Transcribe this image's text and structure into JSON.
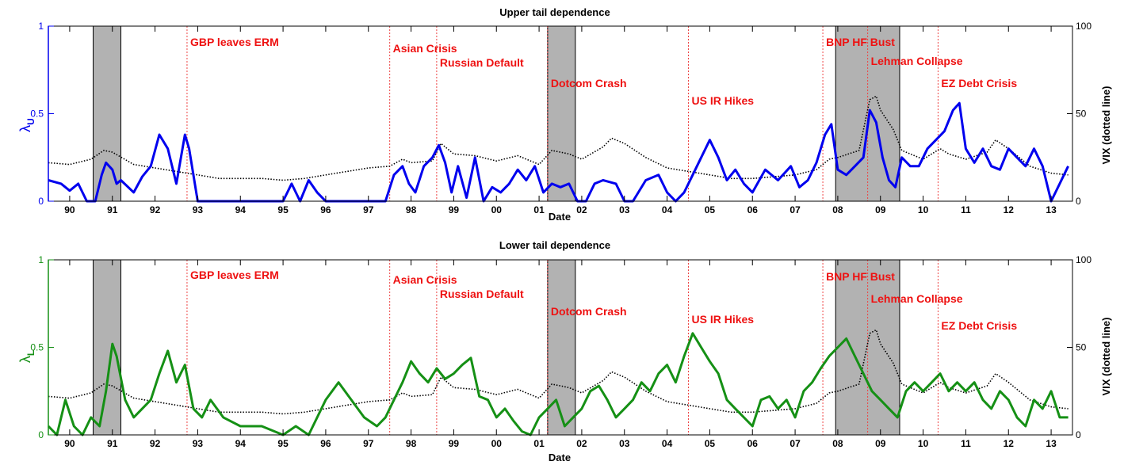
{
  "colors": {
    "upper_series": "#0000ee",
    "lower_series": "#159015",
    "vix_series": "#000000",
    "event_line": "#ee4444",
    "event_text": "#ee1111",
    "recession_fill": "#b2b2b2"
  },
  "x_ticks": [
    "90",
    "91",
    "92",
    "93",
    "94",
    "95",
    "96",
    "97",
    "98",
    "99",
    "00",
    "01",
    "02",
    "03",
    "04",
    "05",
    "06",
    "07",
    "08",
    "09",
    "10",
    "11",
    "12",
    "13"
  ],
  "xlabel": "Date",
  "recessions": [
    [
      1990.55,
      1991.2
    ],
    [
      2001.2,
      2001.85
    ],
    [
      2007.95,
      2009.45
    ]
  ],
  "events": [
    {
      "label": "GBP leaves ERM",
      "year": 1992.75
    },
    {
      "label": "Asian Crisis",
      "year": 1997.5
    },
    {
      "label": "Russian Default",
      "year": 1998.6
    },
    {
      "label": "Dotcom Crash",
      "year": 2001.2
    },
    {
      "label": "US IR Hikes",
      "year": 2004.5
    },
    {
      "label": "BNP HF Bust",
      "year": 2007.65
    },
    {
      "label": "Lehman Collapse",
      "year": 2008.7
    },
    {
      "label": "EZ Debt Crisis",
      "year": 2010.35
    }
  ],
  "vix_series": {
    "x": [
      1989.5,
      1990.0,
      1990.5,
      1990.8,
      1991.0,
      1991.5,
      1992.0,
      1992.5,
      1993.0,
      1993.5,
      1994.0,
      1994.5,
      1995.0,
      1995.5,
      1996.0,
      1996.5,
      1997.0,
      1997.5,
      1997.8,
      1998.0,
      1998.5,
      1998.7,
      1999.0,
      1999.5,
      2000.0,
      2000.5,
      2001.0,
      2001.3,
      2001.7,
      2002.0,
      2002.5,
      2002.7,
      2003.0,
      2003.5,
      2004.0,
      2004.5,
      2005.0,
      2005.5,
      2006.0,
      2006.5,
      2007.0,
      2007.5,
      2007.8,
      2008.0,
      2008.5,
      2008.75,
      2008.9,
      2009.0,
      2009.3,
      2009.5,
      2010.0,
      2010.4,
      2010.6,
      2011.0,
      2011.5,
      2011.7,
      2012.0,
      2012.5,
      2013.0,
      2013.4
    ],
    "y": [
      22,
      21,
      24,
      29,
      28,
      21,
      19,
      17,
      15,
      13,
      13,
      13,
      12,
      13,
      15,
      17,
      19,
      20,
      24,
      22,
      23,
      33,
      27,
      26,
      23,
      26,
      21,
      29,
      27,
      24,
      31,
      36,
      33,
      25,
      19,
      17,
      15,
      13,
      13,
      14,
      15,
      18,
      24,
      25,
      29,
      58,
      60,
      52,
      41,
      29,
      24,
      30,
      27,
      24,
      28,
      35,
      30,
      20,
      16,
      15
    ]
  },
  "chart_data": [
    {
      "type": "line",
      "title": "Upper tail dependence",
      "xlabel": "Date",
      "ylabel": "λ_U",
      "ylabel_main": "λ",
      "ylabel_sub": "U",
      "y2label": "VIX (dotted line)",
      "xlim": [
        1989.5,
        2013.5
      ],
      "ylim": [
        0,
        1
      ],
      "y2lim": [
        0,
        100
      ],
      "yticks": [
        0,
        0.5,
        1
      ],
      "y2ticks": [
        0,
        50,
        100
      ],
      "categories": [
        "90",
        "91",
        "92",
        "93",
        "94",
        "95",
        "96",
        "97",
        "98",
        "99",
        "00",
        "01",
        "02",
        "03",
        "04",
        "05",
        "06",
        "07",
        "08",
        "09",
        "10",
        "11",
        "12",
        "13"
      ],
      "series": [
        {
          "axis": "left",
          "x": [
            1989.5,
            1989.8,
            1990.0,
            1990.2,
            1990.4,
            1990.6,
            1990.75,
            1990.85,
            1991.0,
            1991.1,
            1991.2,
            1991.5,
            1991.7,
            1991.9,
            1992.1,
            1992.3,
            1992.5,
            1992.7,
            1992.8,
            1993.0,
            1993.2,
            1993.5,
            1994.0,
            1994.5,
            1995.0,
            1995.2,
            1995.4,
            1995.6,
            1995.8,
            1996.0,
            1996.3,
            1996.6,
            1996.9,
            1997.2,
            1997.4,
            1997.6,
            1997.8,
            1997.95,
            1998.1,
            1998.3,
            1998.5,
            1998.65,
            1998.8,
            1998.95,
            1999.1,
            1999.3,
            1999.5,
            1999.7,
            1999.9,
            2000.1,
            2000.3,
            2000.5,
            2000.7,
            2000.9,
            2001.1,
            2001.3,
            2001.5,
            2001.7,
            2001.9,
            2002.1,
            2002.3,
            2002.5,
            2002.8,
            2003.0,
            2003.2,
            2003.5,
            2003.8,
            2004.0,
            2004.2,
            2004.4,
            2004.6,
            2004.8,
            2005.0,
            2005.2,
            2005.4,
            2005.6,
            2005.8,
            2006.0,
            2006.3,
            2006.6,
            2006.9,
            2007.1,
            2007.3,
            2007.5,
            2007.7,
            2007.85,
            2008.0,
            2008.2,
            2008.4,
            2008.6,
            2008.75,
            2008.9,
            2009.05,
            2009.2,
            2009.35,
            2009.5,
            2009.7,
            2009.9,
            2010.1,
            2010.3,
            2010.5,
            2010.7,
            2010.85,
            2011.0,
            2011.2,
            2011.4,
            2011.6,
            2011.8,
            2012.0,
            2012.2,
            2012.4,
            2012.6,
            2012.8,
            2013.0,
            2013.2,
            2013.4
          ],
          "y": [
            0.12,
            0.1,
            0.06,
            0.1,
            0.0,
            0.0,
            0.15,
            0.22,
            0.18,
            0.1,
            0.12,
            0.05,
            0.14,
            0.2,
            0.38,
            0.3,
            0.1,
            0.38,
            0.3,
            0.0,
            0.0,
            0.0,
            0.0,
            0.0,
            0.0,
            0.1,
            0.0,
            0.12,
            0.05,
            0.0,
            0.0,
            0.0,
            0.0,
            0.0,
            0.0,
            0.15,
            0.2,
            0.1,
            0.05,
            0.2,
            0.25,
            0.32,
            0.22,
            0.05,
            0.2,
            0.02,
            0.25,
            0.0,
            0.08,
            0.05,
            0.1,
            0.18,
            0.12,
            0.2,
            0.05,
            0.1,
            0.08,
            0.1,
            0.0,
            0.0,
            0.1,
            0.12,
            0.1,
            0.0,
            0.0,
            0.12,
            0.15,
            0.05,
            0.0,
            0.05,
            0.15,
            0.25,
            0.35,
            0.25,
            0.12,
            0.18,
            0.1,
            0.05,
            0.18,
            0.12,
            0.2,
            0.08,
            0.12,
            0.22,
            0.38,
            0.44,
            0.18,
            0.15,
            0.2,
            0.25,
            0.52,
            0.45,
            0.25,
            0.12,
            0.08,
            0.25,
            0.2,
            0.2,
            0.3,
            0.35,
            0.4,
            0.52,
            0.56,
            0.3,
            0.22,
            0.3,
            0.2,
            0.18,
            0.3,
            0.25,
            0.2,
            0.3,
            0.2,
            0.0,
            0.1,
            0.2
          ]
        }
      ]
    },
    {
      "type": "line",
      "title": "Lower tail dependence",
      "xlabel": "Date",
      "ylabel": "λ_L",
      "ylabel_main": "λ",
      "ylabel_sub": "L",
      "y2label": "VIX (dotted line)",
      "xlim": [
        1989.5,
        2013.5
      ],
      "ylim": [
        0,
        1
      ],
      "y2lim": [
        0,
        100
      ],
      "yticks": [
        0,
        0.5,
        1
      ],
      "y2ticks": [
        0,
        50,
        100
      ],
      "categories": [
        "90",
        "91",
        "92",
        "93",
        "94",
        "95",
        "96",
        "97",
        "98",
        "99",
        "00",
        "01",
        "02",
        "03",
        "04",
        "05",
        "06",
        "07",
        "08",
        "09",
        "10",
        "11",
        "12",
        "13"
      ],
      "series": [
        {
          "axis": "left",
          "x": [
            1989.5,
            1989.7,
            1989.9,
            1990.1,
            1990.3,
            1990.5,
            1990.7,
            1990.85,
            1991.0,
            1991.1,
            1991.3,
            1991.5,
            1991.7,
            1991.9,
            1992.1,
            1992.3,
            1992.5,
            1992.7,
            1992.9,
            1993.1,
            1993.3,
            1993.6,
            1994.0,
            1994.5,
            1995.0,
            1995.3,
            1995.6,
            1996.0,
            1996.3,
            1996.6,
            1996.9,
            1997.2,
            1997.4,
            1997.6,
            1997.8,
            1998.0,
            1998.2,
            1998.4,
            1998.6,
            1998.8,
            1999.0,
            1999.2,
            1999.4,
            1999.6,
            1999.8,
            2000.0,
            2000.2,
            2000.4,
            2000.6,
            2000.8,
            2001.0,
            2001.2,
            2001.4,
            2001.6,
            2001.8,
            2002.0,
            2002.2,
            2002.4,
            2002.6,
            2002.8,
            2003.0,
            2003.2,
            2003.4,
            2003.6,
            2003.8,
            2004.0,
            2004.2,
            2004.4,
            2004.6,
            2004.8,
            2005.0,
            2005.2,
            2005.4,
            2005.6,
            2005.8,
            2006.0,
            2006.2,
            2006.4,
            2006.6,
            2006.8,
            2007.0,
            2007.2,
            2007.4,
            2007.6,
            2007.8,
            2008.0,
            2008.2,
            2008.4,
            2008.6,
            2008.8,
            2009.0,
            2009.2,
            2009.4,
            2009.6,
            2009.8,
            2010.0,
            2010.2,
            2010.4,
            2010.6,
            2010.8,
            2011.0,
            2011.2,
            2011.4,
            2011.6,
            2011.8,
            2012.0,
            2012.2,
            2012.4,
            2012.6,
            2012.8,
            2013.0,
            2013.2,
            2013.4
          ],
          "y": [
            0.05,
            0.0,
            0.2,
            0.05,
            0.0,
            0.1,
            0.05,
            0.25,
            0.52,
            0.45,
            0.2,
            0.1,
            0.15,
            0.2,
            0.35,
            0.48,
            0.3,
            0.4,
            0.15,
            0.1,
            0.2,
            0.1,
            0.05,
            0.05,
            0.0,
            0.05,
            0.0,
            0.2,
            0.3,
            0.2,
            0.1,
            0.05,
            0.1,
            0.2,
            0.3,
            0.42,
            0.35,
            0.3,
            0.38,
            0.32,
            0.35,
            0.4,
            0.44,
            0.22,
            0.2,
            0.1,
            0.15,
            0.08,
            0.02,
            0.0,
            0.1,
            0.15,
            0.2,
            0.05,
            0.1,
            0.15,
            0.25,
            0.28,
            0.2,
            0.1,
            0.15,
            0.2,
            0.3,
            0.25,
            0.35,
            0.4,
            0.3,
            0.45,
            0.58,
            0.5,
            0.42,
            0.35,
            0.2,
            0.15,
            0.1,
            0.05,
            0.2,
            0.22,
            0.15,
            0.2,
            0.1,
            0.25,
            0.3,
            0.38,
            0.45,
            0.5,
            0.55,
            0.45,
            0.35,
            0.25,
            0.2,
            0.15,
            0.1,
            0.25,
            0.3,
            0.25,
            0.3,
            0.35,
            0.25,
            0.3,
            0.25,
            0.3,
            0.2,
            0.15,
            0.25,
            0.2,
            0.1,
            0.05,
            0.2,
            0.15,
            0.25,
            0.1,
            0.1
          ]
        }
      ]
    }
  ]
}
